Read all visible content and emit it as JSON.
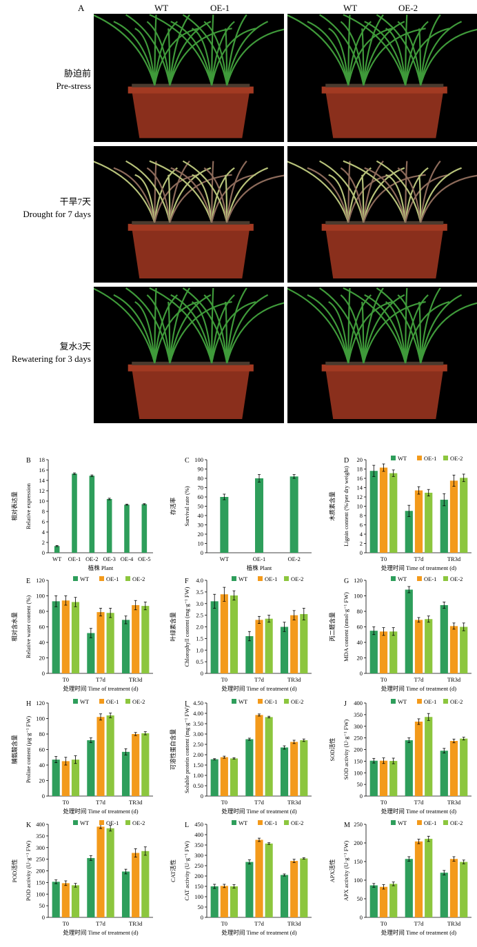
{
  "panelA": {
    "letter": "A",
    "columns": [
      {
        "left": "WT",
        "right": "OE-1"
      },
      {
        "left": "WT",
        "right": "OE-2"
      }
    ],
    "rows": [
      {
        "cn": "胁迫前",
        "en": "Pre-stress"
      },
      {
        "cn": "干旱7天",
        "en": "Drought for 7 days"
      },
      {
        "cn": "复水3天",
        "en": "Rewatering for 3 days"
      }
    ]
  },
  "colors": {
    "WT": "#2e9e5b",
    "OE1": "#f39a1b",
    "OE2": "#8cc63e"
  },
  "legend": [
    "WT",
    "OE-1",
    "OE-2"
  ],
  "chart_data": [
    {
      "id": "B",
      "letter": "B",
      "type": "bar",
      "categories": [
        "WT",
        "OE-1",
        "OE-2",
        "OE-3",
        "OE-4",
        "OE-5"
      ],
      "series": [
        {
          "values": [
            1.3,
            15.3,
            14.9,
            10.4,
            9.3,
            9.4
          ],
          "err": [
            0.1,
            0.15,
            0.15,
            0.15,
            0.1,
            0.1
          ]
        }
      ],
      "ylabel_cn": "相对表达量",
      "ylabel_en": "Relative expression",
      "xlabel": "植株 Plant",
      "ylim": [
        0,
        18
      ],
      "yticks": [
        0,
        2,
        4,
        6,
        8,
        10,
        12,
        14,
        16,
        18
      ]
    },
    {
      "id": "C",
      "letter": "C",
      "type": "bar",
      "categories": [
        "WT",
        "OE-1",
        "OE-2"
      ],
      "series": [
        {
          "values": [
            60,
            80,
            82
          ],
          "err": [
            3,
            4,
            2
          ]
        }
      ],
      "ylabel_cn": "存活率",
      "ylabel_en": "Survival rate (%)",
      "xlabel": "植株 Plant",
      "ylim": [
        0,
        100
      ],
      "yticks": [
        0,
        10,
        20,
        30,
        40,
        50,
        60,
        70,
        80,
        90,
        100
      ]
    },
    {
      "id": "D",
      "letter": "D",
      "type": "bar",
      "legend": true,
      "categories": [
        "T0",
        "T7d",
        "TR3d"
      ],
      "series": [
        {
          "name": "WT",
          "values": [
            17.6,
            9.0,
            11.4
          ],
          "err": [
            1.2,
            1.2,
            1.3
          ]
        },
        {
          "name": "OE-1",
          "values": [
            18.3,
            13.4,
            15.5
          ],
          "err": [
            0.8,
            0.8,
            1.2
          ]
        },
        {
          "name": "OE-2",
          "values": [
            17.1,
            12.9,
            16.1
          ],
          "err": [
            0.7,
            0.7,
            0.8
          ]
        }
      ],
      "ylabel_cn": "木质素含量",
      "ylabel_en": "Lignin content (%/per dry weight)",
      "xlabel": "处理时间 Time of treatment (d)",
      "ylim": [
        0,
        20
      ],
      "yticks": [
        0,
        2,
        4,
        6,
        8,
        10,
        12,
        14,
        16,
        18,
        20
      ]
    },
    {
      "id": "E",
      "letter": "E",
      "type": "bar",
      "legend": true,
      "categories": [
        "T0",
        "T7d",
        "TR3d"
      ],
      "series": [
        {
          "name": "WT",
          "values": [
            93,
            52,
            69
          ],
          "err": [
            7,
            6,
            5
          ]
        },
        {
          "name": "OE-1",
          "values": [
            94,
            79,
            88
          ],
          "err": [
            6,
            5,
            6
          ]
        },
        {
          "name": "OE-2",
          "values": [
            92,
            78,
            87
          ],
          "err": [
            6,
            6,
            5
          ]
        }
      ],
      "ylabel_cn": "相对含水量",
      "ylabel_en": "Relative water content (%)",
      "xlabel": "处理时间 Time of treatment (d)",
      "ylim": [
        0,
        120
      ],
      "yticks": [
        0,
        20,
        40,
        60,
        80,
        100,
        120
      ]
    },
    {
      "id": "F",
      "letter": "F",
      "type": "bar",
      "legend": true,
      "categories": [
        "T0",
        "T7d",
        "TR3d"
      ],
      "series": [
        {
          "name": "WT",
          "values": [
            3.1,
            1.6,
            2.0
          ],
          "err": [
            0.3,
            0.2,
            0.2
          ]
        },
        {
          "name": "OE-1",
          "values": [
            3.4,
            2.3,
            2.5
          ],
          "err": [
            0.3,
            0.15,
            0.2
          ]
        },
        {
          "name": "OE-2",
          "values": [
            3.35,
            2.35,
            2.55
          ],
          "err": [
            0.2,
            0.15,
            0.25
          ]
        }
      ],
      "ylabel_cn": "叶绿素含量",
      "ylabel_en": "Chlorophyll content (mg·g⁻¹ FW)",
      "xlabel": "处理时间 Time of treatment (d)",
      "ylim": [
        0,
        4.0
      ],
      "yticks": [
        0,
        0.5,
        1.0,
        1.5,
        2.0,
        2.5,
        3.0,
        3.5,
        4.0
      ],
      "yticklabels": [
        "0",
        "0.5",
        "1.0",
        "1.5",
        "2.0",
        "2.5",
        "3.0",
        "3.5",
        "4.0"
      ]
    },
    {
      "id": "G",
      "letter": "G",
      "type": "bar",
      "legend": true,
      "categories": [
        "T0",
        "T7d",
        "TR3d"
      ],
      "series": [
        {
          "name": "WT",
          "values": [
            55,
            108,
            88
          ],
          "err": [
            5,
            4,
            4
          ]
        },
        {
          "name": "OE-1",
          "values": [
            54,
            69,
            61
          ],
          "err": [
            5,
            3,
            4
          ]
        },
        {
          "name": "OE-2",
          "values": [
            54,
            70,
            60
          ],
          "err": [
            5,
            4,
            5
          ]
        }
      ],
      "ylabel_cn": "丙二醛含量",
      "ylabel_en": "MDA content (nmol·g⁻¹ FW)",
      "xlabel": "处理时间 Time of treatment (d)",
      "ylim": [
        0,
        120
      ],
      "yticks": [
        0,
        20,
        40,
        60,
        80,
        100,
        120
      ]
    },
    {
      "id": "H",
      "letter": "H",
      "type": "bar",
      "legend": true,
      "categories": [
        "T0",
        "T7d",
        "TR3d"
      ],
      "series": [
        {
          "name": "WT",
          "values": [
            47,
            72,
            57
          ],
          "err": [
            4,
            3,
            4
          ]
        },
        {
          "name": "OE-1",
          "values": [
            45,
            102,
            80
          ],
          "err": [
            5,
            4,
            2
          ]
        },
        {
          "name": "OE-2",
          "values": [
            47,
            104,
            81
          ],
          "err": [
            5,
            3,
            2
          ]
        }
      ],
      "ylabel_cn": "脯氨酸含量",
      "ylabel_en": "Proline content (μg·g⁻¹ FW)",
      "xlabel": "处理时间 Time of treatment (d)",
      "ylim": [
        0,
        120
      ],
      "yticks": [
        0,
        20,
        40,
        60,
        80,
        100,
        120
      ]
    },
    {
      "id": "I",
      "letter": "I",
      "type": "bar",
      "legend": true,
      "categories": [
        "T0",
        "T7d",
        "TR3d"
      ],
      "series": [
        {
          "name": "WT",
          "values": [
            1.78,
            2.75,
            2.35
          ],
          "err": [
            0.03,
            0.05,
            0.08
          ]
        },
        {
          "name": "OE-1",
          "values": [
            1.88,
            3.92,
            2.62
          ],
          "err": [
            0.05,
            0.05,
            0.08
          ]
        },
        {
          "name": "OE-2",
          "values": [
            1.82,
            3.82,
            2.7
          ],
          "err": [
            0.03,
            0.04,
            0.06
          ]
        }
      ],
      "ylabel_cn": "可溶性蛋白含量",
      "ylabel_en": "Soluble protein content (mg·g⁻¹ FW)",
      "xlabel": "处理时间 Time of treatment (d)",
      "ylim": [
        0,
        4.5
      ],
      "yticks": [
        0,
        0.5,
        1.0,
        1.5,
        2.0,
        2.5,
        3.0,
        3.5,
        4.0,
        4.5
      ],
      "yticklabels": [
        "0",
        "0.50",
        "1.00",
        "1.50",
        "2.00",
        "2.50",
        "3.00",
        "3.50",
        "4.00",
        "4.50"
      ]
    },
    {
      "id": "J",
      "letter": "J",
      "type": "bar",
      "legend": true,
      "categories": [
        "T0",
        "T7d",
        "TR3d"
      ],
      "series": [
        {
          "name": "WT",
          "values": [
            152,
            240,
            195
          ],
          "err": [
            10,
            10,
            10
          ]
        },
        {
          "name": "OE-1",
          "values": [
            152,
            320,
            237
          ],
          "err": [
            12,
            12,
            8
          ]
        },
        {
          "name": "OE-2",
          "values": [
            151,
            340,
            247
          ],
          "err": [
            12,
            15,
            6
          ]
        }
      ],
      "ylabel_cn": "SOD活性",
      "ylabel_en": "SOD activity (U·g⁻¹ FW)",
      "xlabel": "处理时间 Time of treatment (d)",
      "ylim": [
        0,
        400
      ],
      "yticks": [
        0,
        50,
        100,
        150,
        200,
        250,
        300,
        350,
        400
      ]
    },
    {
      "id": "K",
      "letter": "K",
      "type": "bar",
      "legend": true,
      "categories": [
        "T0",
        "T7d",
        "TR3d"
      ],
      "series": [
        {
          "name": "WT",
          "values": [
            153,
            255,
            197
          ],
          "err": [
            8,
            10,
            10
          ]
        },
        {
          "name": "OE-1",
          "values": [
            147,
            390,
            277
          ],
          "err": [
            10,
            8,
            18
          ]
        },
        {
          "name": "OE-2",
          "values": [
            138,
            383,
            285
          ],
          "err": [
            8,
            12,
            18
          ]
        }
      ],
      "ylabel_cn": "POD活性",
      "ylabel_en": "POD activity (U·g⁻¹ FW)",
      "xlabel": "处理时间 Time of treatment (d)",
      "ylim": [
        0,
        400
      ],
      "yticks": [
        0,
        50,
        100,
        150,
        200,
        250,
        300,
        350,
        400
      ]
    },
    {
      "id": "L",
      "letter": "L",
      "type": "bar",
      "legend": true,
      "categories": [
        "T0",
        "T7d",
        "TR3d"
      ],
      "series": [
        {
          "name": "WT",
          "values": [
            150,
            268,
            205
          ],
          "err": [
            10,
            10,
            5
          ]
        },
        {
          "name": "OE-1",
          "values": [
            152,
            375,
            273
          ],
          "err": [
            8,
            8,
            8
          ]
        },
        {
          "name": "OE-2",
          "values": [
            150,
            357,
            285
          ],
          "err": [
            8,
            4,
            3
          ]
        }
      ],
      "ylabel_cn": "CAT活性",
      "ylabel_en": "CAT activity (U·g⁻¹ FW)",
      "xlabel": "处理时间 Time of treatment (d)",
      "ylim": [
        0,
        450
      ],
      "yticks": [
        0,
        50,
        100,
        150,
        200,
        250,
        300,
        350,
        400,
        450
      ]
    },
    {
      "id": "M",
      "letter": "M",
      "type": "bar",
      "legend": true,
      "categories": [
        "T0",
        "T7d",
        "TR3d"
      ],
      "series": [
        {
          "name": "WT",
          "values": [
            86,
            157,
            120
          ],
          "err": [
            5,
            6,
            6
          ]
        },
        {
          "name": "OE-1",
          "values": [
            82,
            204,
            157
          ],
          "err": [
            6,
            6,
            6
          ]
        },
        {
          "name": "OE-2",
          "values": [
            90,
            211,
            149
          ],
          "err": [
            5,
            7,
            5
          ]
        }
      ],
      "ylabel_cn": "APX活性",
      "ylabel_en": "APX activity (U·g⁻¹ FW)",
      "xlabel": "处理时间 Time of treatment (d)",
      "ylim": [
        0,
        250
      ],
      "yticks": [
        0,
        50,
        100,
        150,
        200,
        250
      ]
    }
  ]
}
